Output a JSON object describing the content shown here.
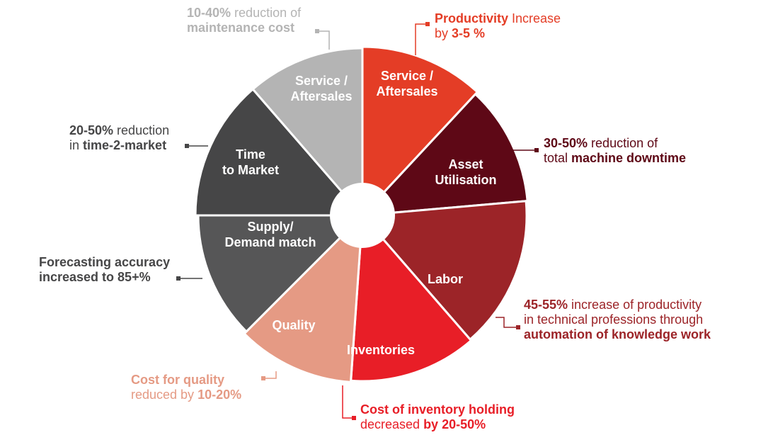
{
  "diagram": {
    "segments": [
      {
        "id": "service-right",
        "label_lines": [
          "Service /",
          "Aftersales"
        ],
        "color": "#E43D26"
      },
      {
        "id": "asset",
        "label_lines": [
          "Asset",
          "Utilisation"
        ],
        "color": "#5E0816"
      },
      {
        "id": "labor",
        "label_lines": [
          "Labor"
        ],
        "color": "#9C2428"
      },
      {
        "id": "inventories",
        "label_lines": [
          "Inventories"
        ],
        "color": "#E81E27"
      },
      {
        "id": "quality",
        "label_lines": [
          "Quality"
        ],
        "color": "#E59A84"
      },
      {
        "id": "supply",
        "label_lines": [
          "Supply/",
          "Demand match"
        ],
        "color": "#565657"
      },
      {
        "id": "time",
        "label_lines": [
          "Time",
          "to Market"
        ],
        "color": "#464647"
      },
      {
        "id": "service-left",
        "label_lines": [
          "Service /",
          "Aftersales"
        ],
        "color": "#B4B4B4"
      }
    ],
    "annotations": {
      "productivity": {
        "a": "Productivity",
        "b": " Increase",
        "c": "by ",
        "d": "3-5 %",
        "color": "#E43D26"
      },
      "downtime": {
        "a": "30-50%",
        "b": " reduction of",
        "c": "total ",
        "d": "machine downtime",
        "color": "#5E0816"
      },
      "labor": {
        "a": "45-55%",
        "b": " increase of productivity",
        "c": "in technical professions through",
        "d": "automation of knowledge work",
        "color": "#9C2428"
      },
      "inventory": {
        "a": "Cost of inventory holding",
        "b": "decreased ",
        "c": "by 20-50%",
        "color": "#E81E27"
      },
      "quality": {
        "a": "Cost for quality",
        "b": "reduced by ",
        "c": "10-20%",
        "color": "#E59A84"
      },
      "forecast": {
        "a": "Forecasting accuracy",
        "b": "increased to 85+%",
        "color": "#464647"
      },
      "time2market": {
        "a": "20-50%",
        "b": " reduction",
        "c": "in ",
        "d": "time-2-market",
        "color": "#464647"
      },
      "maintenance": {
        "a": "10-40%",
        "b": " reduction of",
        "c": "maintenance cost",
        "color": "#B4B4B4"
      }
    }
  }
}
